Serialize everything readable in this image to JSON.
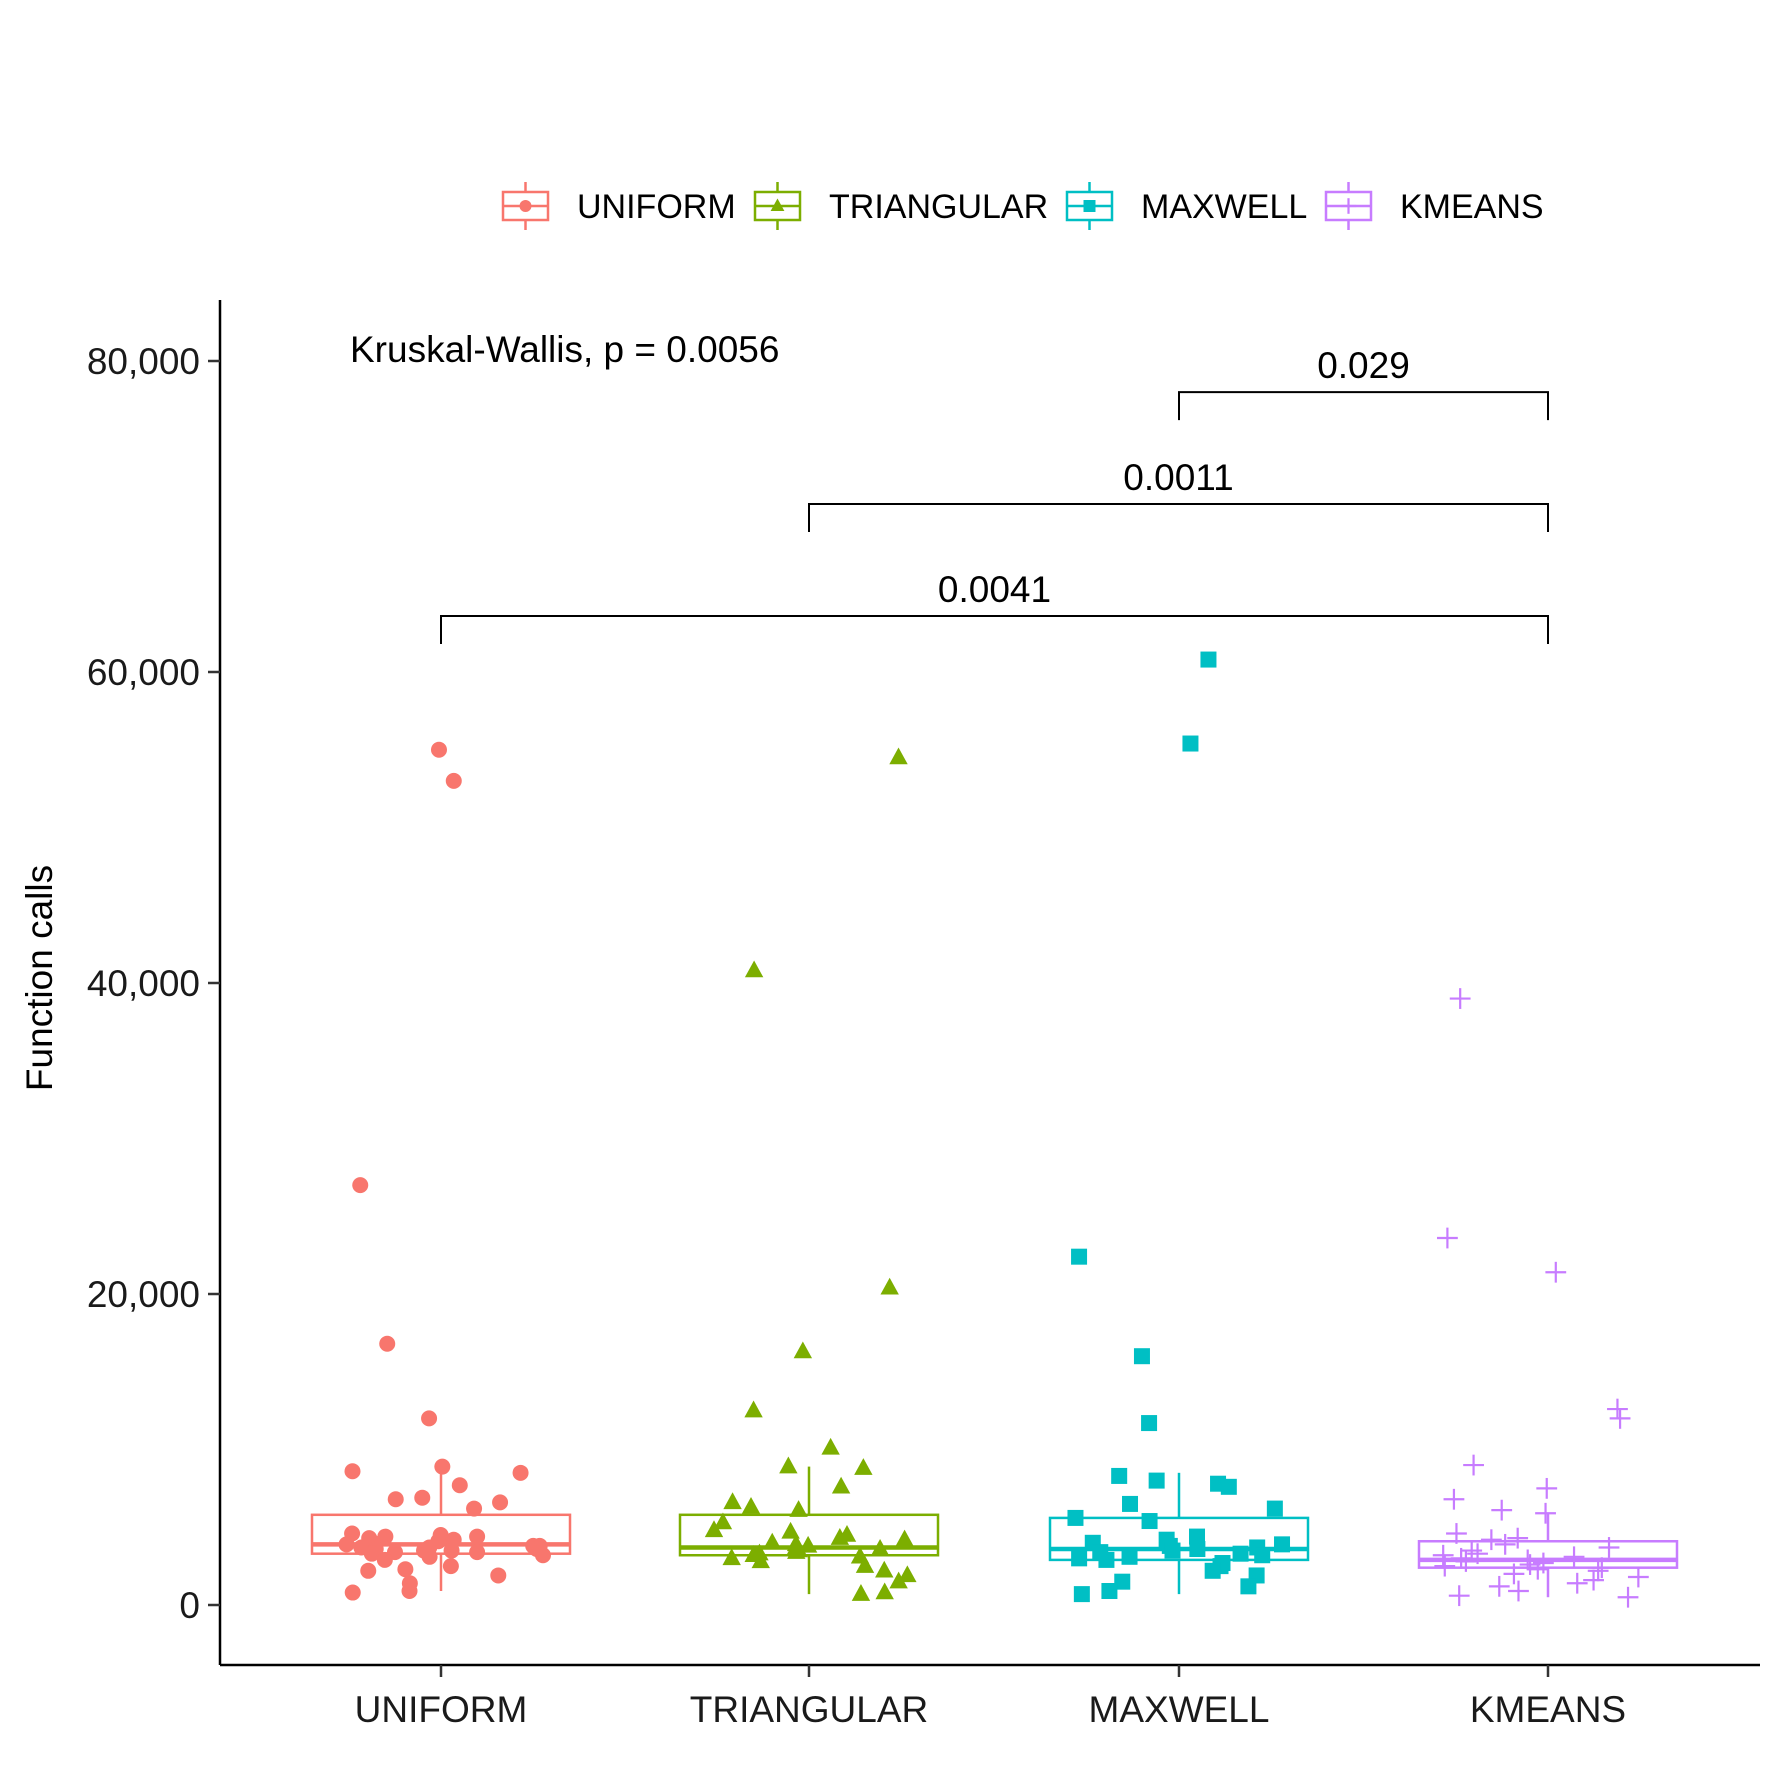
{
  "chart_data": {
    "type": "box",
    "categories": [
      "UNIFORM",
      "TRIANGULAR",
      "MAXWELL",
      "KMEANS"
    ],
    "ylabel": "Function calls",
    "xlabel": "",
    "ylim": [
      -3500,
      84000
    ],
    "yticks": [
      0,
      20000,
      40000,
      60000,
      80000
    ],
    "ytick_labels": [
      "0",
      "20,000",
      "40,000",
      "60,000",
      "80,000"
    ],
    "legend_position": "top",
    "grid": false,
    "colors": [
      "#F8766D",
      "#7CAE00",
      "#00BFC4",
      "#C77CFF"
    ],
    "markers": [
      "circle",
      "triangle",
      "square",
      "plus"
    ],
    "series": [
      {
        "name": "UNIFORM",
        "box": {
          "q1": 3300,
          "median": 3900,
          "q3": 5800,
          "whisker_low": 900,
          "whisker_high": 9300
        },
        "points": [
          55000,
          53000,
          27000,
          16800,
          12000,
          8900,
          8600,
          8500,
          7700,
          6900,
          6800,
          6600,
          6200,
          4600,
          4500,
          4400,
          4400,
          4300,
          4200,
          4100,
          4000,
          3900,
          3800,
          3800,
          3700,
          3700,
          3600,
          3600,
          3500,
          3500,
          3400,
          3400,
          3300,
          3200,
          3100,
          2900,
          2500,
          2300,
          2200,
          1900,
          1400,
          900,
          800
        ]
      },
      {
        "name": "TRIANGULAR",
        "box": {
          "q1": 3200,
          "median": 3700,
          "q3": 5800,
          "whisker_low": 700,
          "whisker_high": 8900
        },
        "points": [
          54500,
          40800,
          20400,
          16300,
          12500,
          10100,
          8900,
          8800,
          7600,
          6600,
          6300,
          6100,
          5300,
          4800,
          4700,
          4500,
          4300,
          4200,
          4000,
          3900,
          3800,
          3700,
          3600,
          3500,
          3400,
          3300,
          3200,
          3100,
          3000,
          2800,
          2500,
          2200,
          1900,
          1500,
          800,
          700
        ]
      },
      {
        "name": "MAXWELL",
        "box": {
          "q1": 2900,
          "median": 3600,
          "q3": 5600,
          "whisker_low": 700,
          "whisker_high": 8500
        },
        "points": [
          60800,
          55400,
          22400,
          16000,
          11700,
          8300,
          8000,
          7800,
          7600,
          6500,
          6200,
          5600,
          5400,
          4400,
          4200,
          4000,
          3900,
          3800,
          3700,
          3600,
          3500,
          3400,
          3300,
          3200,
          3100,
          3000,
          2900,
          2700,
          2500,
          2200,
          1900,
          1500,
          1200,
          900,
          700
        ]
      },
      {
        "name": "KMEANS",
        "box": {
          "q1": 2400,
          "median": 2900,
          "q3": 4100,
          "whisker_low": 500,
          "whisker_high": 5900
        },
        "points": [
          39000,
          23600,
          21400,
          12600,
          12000,
          9000,
          7500,
          6800,
          6100,
          5900,
          4600,
          4300,
          4200,
          3900,
          3700,
          3500,
          3300,
          3200,
          3100,
          3000,
          2900,
          2800,
          2700,
          2600,
          2500,
          2400,
          2300,
          2200,
          2000,
          1800,
          1600,
          1400,
          1200,
          900,
          600,
          500
        ]
      }
    ],
    "annotations": {
      "global_test": "Kruskal-Wallis, p = 0.0056",
      "brackets": [
        {
          "from": "MAXWELL",
          "to": "KMEANS",
          "label": "0.029",
          "y": 78000
        },
        {
          "from": "TRIANGULAR",
          "to": "KMEANS",
          "label": "0.0011",
          "y": 70800
        },
        {
          "from": "UNIFORM",
          "to": "KMEANS",
          "label": "0.0041",
          "y": 63600
        }
      ]
    }
  }
}
